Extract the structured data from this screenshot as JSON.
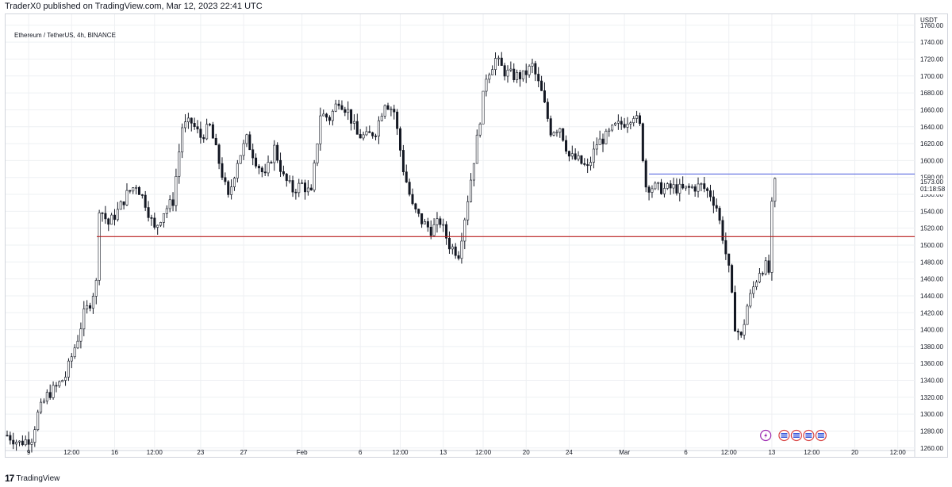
{
  "header": {
    "published_text": "TraderX0 published on TradingView.com, Mar 12, 2023 22:41 UTC"
  },
  "legend": {
    "symbol_text": "Ethereum / TetherUS, 4h, BINANCE"
  },
  "footer": {
    "brand": "TradingView",
    "logo_glyph": "17"
  },
  "colors": {
    "support_line": "#b71c1c",
    "resistance_line": "#5b6be0",
    "candle": "#131722",
    "grid": "#eef0f3",
    "event_marker": "#d84343",
    "lightning_marker": "#9c27b0"
  },
  "chart_data": {
    "type": "candlestick",
    "symbol": "Ethereum / TetherUS",
    "timeframe": "4h",
    "exchange": "BINANCE",
    "y_axis_label": "USDT",
    "ylim": [
      1256,
      1780
    ],
    "y_ticks": [
      "1760.00",
      "1740.00",
      "1720.00",
      "1700.00",
      "1680.00",
      "1660.00",
      "1640.00",
      "1620.00",
      "1600.00",
      "1580.00",
      "1560.00",
      "1540.00",
      "1520.00",
      "1500.00",
      "1480.00",
      "1460.00",
      "1440.00",
      "1420.00",
      "1400.00",
      "1380.00",
      "1360.00",
      "1340.00",
      "1320.00",
      "1300.00",
      "1280.00",
      "1260.00"
    ],
    "x_ticks": [
      {
        "label": "9",
        "t": 7
      },
      {
        "label": "12:00",
        "t": 21
      },
      {
        "label": "16",
        "t": 35
      },
      {
        "label": "12:00",
        "t": 48
      },
      {
        "label": "23",
        "t": 63
      },
      {
        "label": "27",
        "t": 77
      },
      {
        "label": "Feb",
        "t": 96
      },
      {
        "label": "6",
        "t": 115
      },
      {
        "label": "12:00",
        "t": 128
      },
      {
        "label": "13",
        "t": 142
      },
      {
        "label": "12:00",
        "t": 155
      },
      {
        "label": "20",
        "t": 169
      },
      {
        "label": "24",
        "t": 183
      },
      {
        "label": "Mar",
        "t": 201
      },
      {
        "label": "6",
        "t": 221
      },
      {
        "label": "12:00",
        "t": 235
      },
      {
        "label": "13",
        "t": 249
      },
      {
        "label": "12:00",
        "t": 262
      },
      {
        "label": "20",
        "t": 276
      },
      {
        "label": "12:00",
        "t": 290
      }
    ],
    "t_range": [
      0,
      295
    ],
    "price_label": "1573.00",
    "countdown_label": "01:18:58",
    "horizontal_lines": [
      {
        "name": "support",
        "price": 1510
      },
      {
        "name": "resistance",
        "price": 1584,
        "from_t": 209
      }
    ],
    "markers": [
      {
        "kind": "lightning",
        "t": 247
      },
      {
        "kind": "event",
        "t": 253
      },
      {
        "kind": "event",
        "t": 257
      },
      {
        "kind": "event",
        "t": 261
      },
      {
        "kind": "event",
        "t": 265
      }
    ],
    "close_path": [
      [
        0,
        1275
      ],
      [
        4,
        1266
      ],
      [
        8,
        1272
      ],
      [
        10,
        1300
      ],
      [
        13,
        1322
      ],
      [
        16,
        1332
      ],
      [
        19,
        1345
      ],
      [
        21,
        1368
      ],
      [
        23,
        1390
      ],
      [
        25,
        1418
      ],
      [
        27,
        1432
      ],
      [
        29,
        1455
      ],
      [
        30,
        1545
      ],
      [
        33,
        1525
      ],
      [
        36,
        1540
      ],
      [
        39,
        1560
      ],
      [
        42,
        1572
      ],
      [
        45,
        1550
      ],
      [
        48,
        1518
      ],
      [
        51,
        1540
      ],
      [
        54,
        1552
      ],
      [
        57,
        1640
      ],
      [
        60,
        1645
      ],
      [
        63,
        1628
      ],
      [
        66,
        1640
      ],
      [
        69,
        1598
      ],
      [
        72,
        1555
      ],
      [
        75,
        1600
      ],
      [
        78,
        1625
      ],
      [
        81,
        1600
      ],
      [
        84,
        1580
      ],
      [
        87,
        1615
      ],
      [
        90,
        1580
      ],
      [
        93,
        1565
      ],
      [
        96,
        1572
      ],
      [
        99,
        1560
      ],
      [
        102,
        1655
      ],
      [
        105,
        1650
      ],
      [
        108,
        1672
      ],
      [
        111,
        1658
      ],
      [
        114,
        1630
      ],
      [
        117,
        1628
      ],
      [
        120,
        1635
      ],
      [
        123,
        1670
      ],
      [
        126,
        1658
      ],
      [
        129,
        1590
      ],
      [
        132,
        1545
      ],
      [
        135,
        1528
      ],
      [
        138,
        1518
      ],
      [
        141,
        1528
      ],
      [
        144,
        1500
      ],
      [
        147,
        1490
      ],
      [
        150,
        1555
      ],
      [
        153,
        1625
      ],
      [
        156,
        1700
      ],
      [
        159,
        1720
      ],
      [
        162,
        1705
      ],
      [
        165,
        1700
      ],
      [
        168,
        1700
      ],
      [
        171,
        1712
      ],
      [
        174,
        1680
      ],
      [
        177,
        1635
      ],
      [
        180,
        1640
      ],
      [
        183,
        1605
      ],
      [
        186,
        1600
      ],
      [
        189,
        1590
      ],
      [
        192,
        1620
      ],
      [
        195,
        1628
      ],
      [
        198,
        1640
      ],
      [
        201,
        1645
      ],
      [
        204,
        1655
      ],
      [
        206,
        1640
      ],
      [
        208,
        1570
      ],
      [
        211,
        1568
      ],
      [
        214,
        1566
      ],
      [
        217,
        1568
      ],
      [
        220,
        1565
      ],
      [
        223,
        1568
      ],
      [
        226,
        1570
      ],
      [
        229,
        1560
      ],
      [
        231,
        1545
      ],
      [
        233,
        1510
      ],
      [
        235,
        1470
      ],
      [
        237,
        1405
      ],
      [
        239,
        1390
      ],
      [
        241,
        1428
      ],
      [
        243,
        1450
      ],
      [
        245,
        1470
      ],
      [
        247,
        1475
      ],
      [
        248,
        1468
      ],
      [
        249,
        1545
      ],
      [
        250,
        1573
      ]
    ]
  }
}
